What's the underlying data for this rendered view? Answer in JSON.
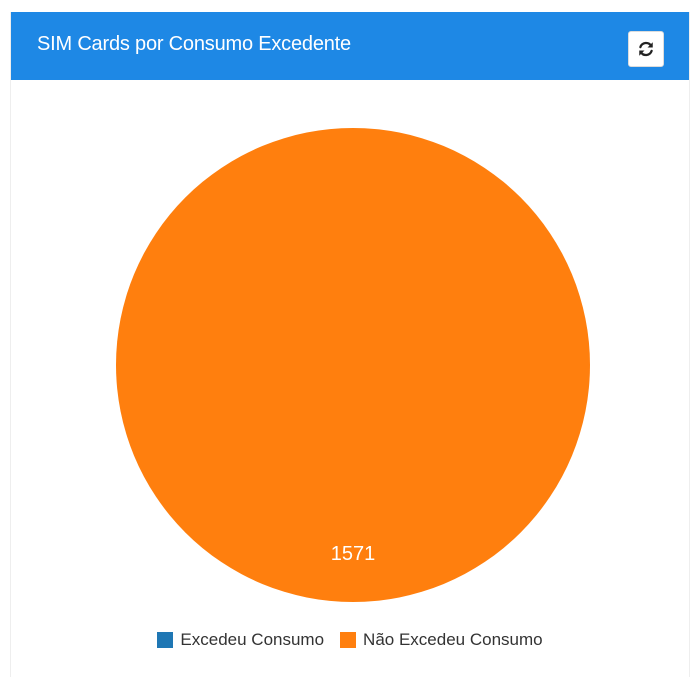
{
  "header": {
    "title": "SIM Cards por Consumo Excedente",
    "refresh_icon": "refresh-icon"
  },
  "chart_data": {
    "type": "pie",
    "categories": [
      "Excedeu Consumo",
      "Não Excedeu Consumo"
    ],
    "values": [
      0,
      1571
    ],
    "colors": [
      "#1f77b4",
      "#ff7f0e"
    ],
    "data_labels": [
      "",
      "1571"
    ],
    "legend_position": "bottom"
  }
}
